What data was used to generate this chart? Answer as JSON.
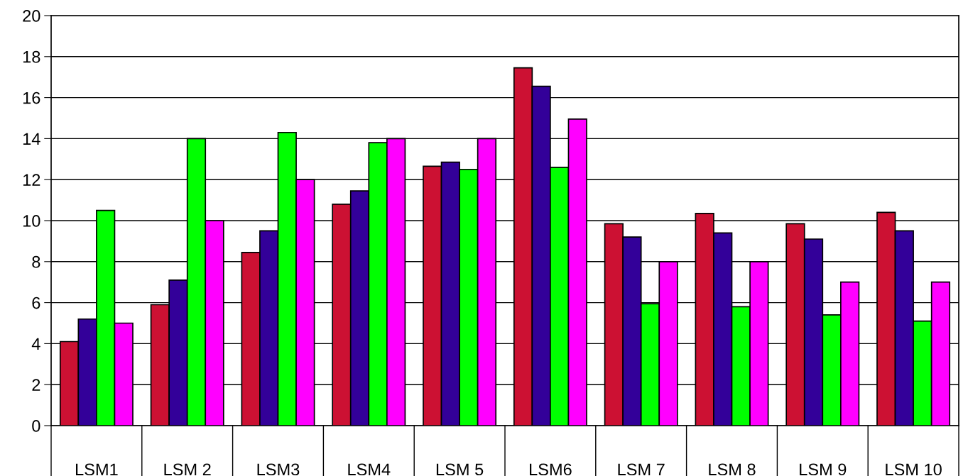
{
  "chart_data": {
    "type": "bar",
    "categories": [
      "LSM1",
      "LSM 2",
      "LSM3",
      "LSM4",
      "LSM 5",
      "LSM6",
      "LSM 7",
      "LSM 8",
      "LSM 9",
      "LSM 10"
    ],
    "series": [
      {
        "color": "#cc1133",
        "values": [
          4.1,
          5.9,
          8.45,
          10.8,
          12.65,
          17.45,
          9.85,
          10.35,
          9.85,
          10.4
        ]
      },
      {
        "color": "#330099",
        "values": [
          5.2,
          7.1,
          9.5,
          11.45,
          12.85,
          16.55,
          9.2,
          9.4,
          9.1,
          9.5
        ]
      },
      {
        "color": "#00ff00",
        "values": [
          10.5,
          14.0,
          14.3,
          13.8,
          12.5,
          12.6,
          5.95,
          5.8,
          5.4,
          5.1
        ]
      },
      {
        "color": "#ff00ff",
        "values": [
          5.0,
          10.0,
          12.0,
          14.0,
          14.0,
          14.95,
          8.0,
          8.0,
          7.0,
          7.0
        ]
      }
    ],
    "ylim": [
      0,
      20
    ],
    "yticks": [
      0,
      2,
      4,
      6,
      8,
      10,
      12,
      14,
      16,
      18,
      20
    ],
    "grid": "y",
    "legend": false
  }
}
